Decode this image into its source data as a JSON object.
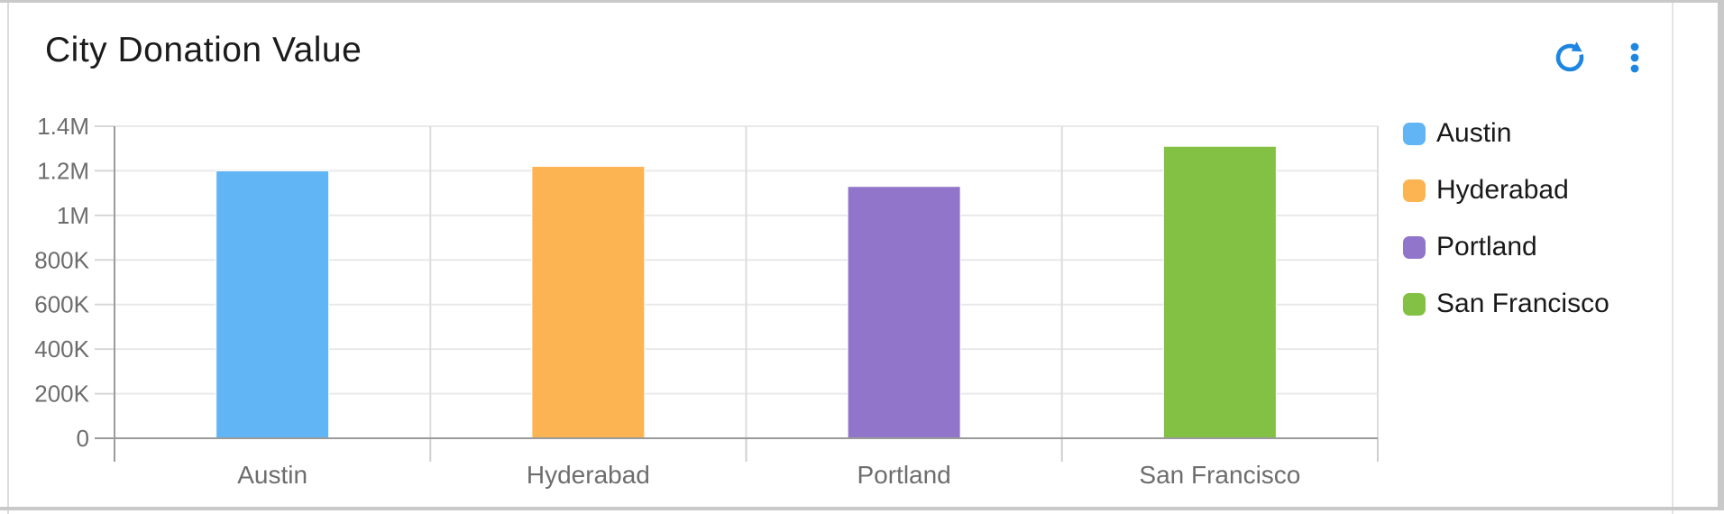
{
  "header": {
    "title": "City Donation Value"
  },
  "toolbar": {
    "refresh_icon": "refresh",
    "menu_icon": "kebab-vertical-menu",
    "icon_color": "#1e86e0"
  },
  "card": {
    "background": "#ffffff",
    "border_color": "#dcdcdc"
  },
  "chart_data": {
    "type": "bar",
    "title": "City Donation Value",
    "categories": [
      "Austin",
      "Hyderabad",
      "Portland",
      "San Francisco"
    ],
    "values": [
      1200000,
      1220000,
      1130000,
      1310000
    ],
    "colors": [
      "#62b5f4",
      "#fcb351",
      "#9175cb",
      "#82c143"
    ],
    "ylim": [
      0,
      1400000
    ],
    "yticks": [
      {
        "value": 0,
        "label": "0"
      },
      {
        "value": 200000,
        "label": "200K"
      },
      {
        "value": 400000,
        "label": "400K"
      },
      {
        "value": 600000,
        "label": "600K"
      },
      {
        "value": 800000,
        "label": "800K"
      },
      {
        "value": 1000000,
        "label": "1M"
      },
      {
        "value": 1200000,
        "label": "1.2M"
      },
      {
        "value": 1400000,
        "label": "1.4M"
      }
    ],
    "xlabel": "",
    "ylabel": "",
    "grid": true,
    "legend_position": "right",
    "legend_entries": [
      "Austin",
      "Hyderabad",
      "Portland",
      "San Francisco"
    ],
    "axis_color": "#9b9b9b",
    "gridline_color": "#e9e9e9",
    "separator_color": "#dddddd",
    "tick_label_color": "#6d6d6d"
  }
}
